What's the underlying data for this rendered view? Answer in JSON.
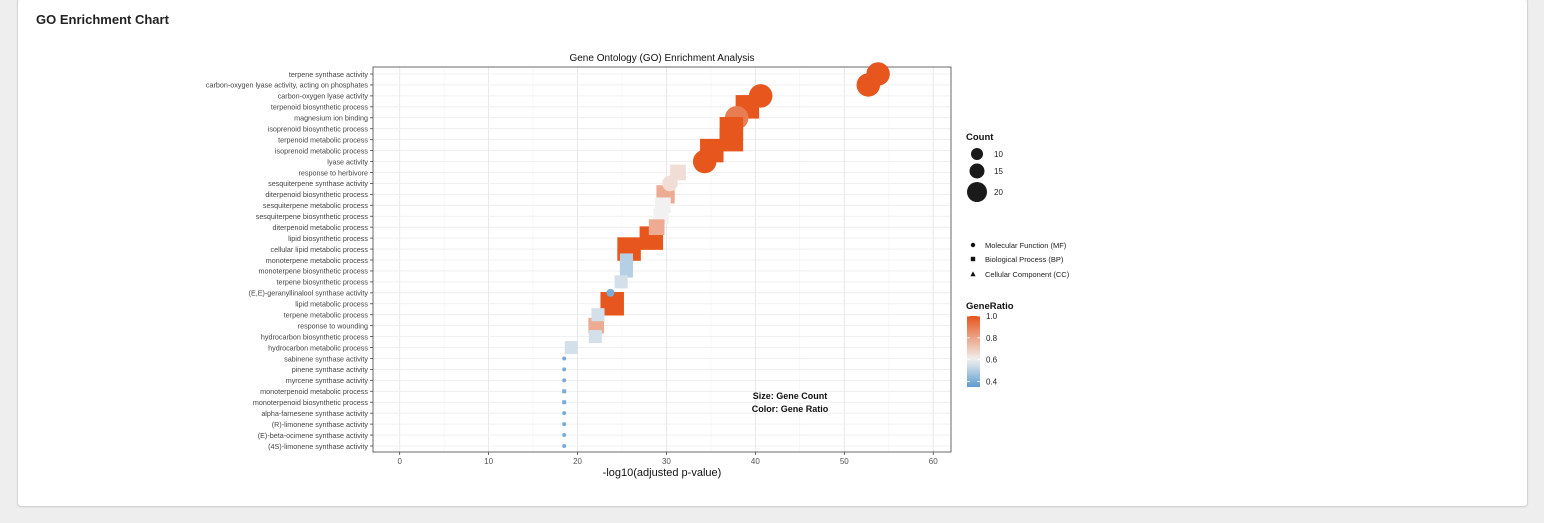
{
  "page": {
    "title": "GO Enrichment Chart"
  },
  "chart_data": {
    "type": "scatter",
    "title": "Gene Ontology (GO) Enrichment Analysis",
    "xlabel": "-log10(adjusted p-value)",
    "ylabel": "",
    "xlim": [
      -3,
      62
    ],
    "xticks": [
      0,
      10,
      20,
      30,
      40,
      50,
      60
    ],
    "grid": true,
    "annotation": [
      "Size: Gene Count",
      "Color: Gene Ratio"
    ],
    "points": [
      {
        "term": "terpene synthase activity",
        "x": 53.8,
        "count": 20,
        "gene_ratio": 1.0,
        "category": "MF"
      },
      {
        "term": "carbon-oxygen lyase activity, acting on phosphates",
        "x": 52.7,
        "count": 20,
        "gene_ratio": 1.0,
        "category": "MF"
      },
      {
        "term": "carbon-oxygen lyase activity",
        "x": 40.6,
        "count": 20,
        "gene_ratio": 1.0,
        "category": "MF"
      },
      {
        "term": "terpenoid biosynthetic process",
        "x": 39.1,
        "count": 20,
        "gene_ratio": 1.0,
        "category": "BP"
      },
      {
        "term": "magnesium ion binding",
        "x": 37.9,
        "count": 20,
        "gene_ratio": 0.9,
        "category": "MF"
      },
      {
        "term": "isoprenoid biosynthetic process",
        "x": 37.3,
        "count": 20,
        "gene_ratio": 1.0,
        "category": "BP"
      },
      {
        "term": "terpenoid metabolic process",
        "x": 37.3,
        "count": 20,
        "gene_ratio": 1.0,
        "category": "BP"
      },
      {
        "term": "isoprenoid metabolic process",
        "x": 35.1,
        "count": 20,
        "gene_ratio": 1.0,
        "category": "BP"
      },
      {
        "term": "lyase activity",
        "x": 34.3,
        "count": 20,
        "gene_ratio": 1.0,
        "category": "MF"
      },
      {
        "term": "response to herbivore",
        "x": 31.3,
        "count": 14,
        "gene_ratio": 0.65,
        "category": "BP"
      },
      {
        "term": "sesquiterpene synthase activity",
        "x": 30.4,
        "count": 14,
        "gene_ratio": 0.65,
        "category": "MF"
      },
      {
        "term": "diterpenoid biosynthetic process",
        "x": 29.9,
        "count": 16,
        "gene_ratio": 0.78,
        "category": "BP"
      },
      {
        "term": "sesquiterpene metabolic process",
        "x": 29.6,
        "count": 14,
        "gene_ratio": 0.6,
        "category": "BP"
      },
      {
        "term": "sesquiterpene biosynthetic process",
        "x": 29.4,
        "count": 14,
        "gene_ratio": 0.6,
        "category": "BP"
      },
      {
        "term": "diterpenoid metabolic process",
        "x": 28.9,
        "count": 14,
        "gene_ratio": 0.78,
        "category": "BP"
      },
      {
        "term": "lipid biosynthetic process",
        "x": 28.3,
        "count": 20,
        "gene_ratio": 1.0,
        "category": "BP"
      },
      {
        "term": "cellular lipid metabolic process",
        "x": 25.8,
        "count": 20,
        "gene_ratio": 1.0,
        "category": "BP"
      },
      {
        "term": "monoterpene metabolic process",
        "x": 25.5,
        "count": 12,
        "gene_ratio": 0.5,
        "category": "BP"
      },
      {
        "term": "monoterpene biosynthetic process",
        "x": 25.5,
        "count": 12,
        "gene_ratio": 0.5,
        "category": "BP"
      },
      {
        "term": "terpene biosynthetic process",
        "x": 24.9,
        "count": 12,
        "gene_ratio": 0.55,
        "category": "BP"
      },
      {
        "term": "(E,E)-geranyllinalool synthase activity",
        "x": 23.7,
        "count": 8,
        "gene_ratio": 0.4,
        "category": "MF"
      },
      {
        "term": "lipid metabolic process",
        "x": 23.9,
        "count": 20,
        "gene_ratio": 1.0,
        "category": "BP"
      },
      {
        "term": "terpene metabolic process",
        "x": 22.3,
        "count": 12,
        "gene_ratio": 0.55,
        "category": "BP"
      },
      {
        "term": "response to wounding",
        "x": 22.1,
        "count": 14,
        "gene_ratio": 0.78,
        "category": "BP"
      },
      {
        "term": "hydrocarbon biosynthetic process",
        "x": 22.0,
        "count": 12,
        "gene_ratio": 0.55,
        "category": "BP"
      },
      {
        "term": "hydrocarbon metabolic process",
        "x": 19.3,
        "count": 12,
        "gene_ratio": 0.55,
        "category": "BP"
      },
      {
        "term": "sabinene synthase activity",
        "x": 18.5,
        "count": 5,
        "gene_ratio": 0.4,
        "category": "MF"
      },
      {
        "term": "pinene synthase activity",
        "x": 18.5,
        "count": 5,
        "gene_ratio": 0.4,
        "category": "MF"
      },
      {
        "term": "myrcene synthase activity",
        "x": 18.5,
        "count": 5,
        "gene_ratio": 0.4,
        "category": "MF"
      },
      {
        "term": "monoterpenoid metabolic process",
        "x": 18.5,
        "count": 5,
        "gene_ratio": 0.4,
        "category": "BP"
      },
      {
        "term": "monoterpenoid biosynthetic process",
        "x": 18.5,
        "count": 5,
        "gene_ratio": 0.4,
        "category": "BP"
      },
      {
        "term": "alpha-farnesene synthase activity",
        "x": 18.5,
        "count": 5,
        "gene_ratio": 0.4,
        "category": "MF"
      },
      {
        "term": "(R)-limonene synthase activity",
        "x": 18.5,
        "count": 5,
        "gene_ratio": 0.4,
        "category": "MF"
      },
      {
        "term": "(E)-beta-ocimene synthase activity",
        "x": 18.5,
        "count": 5,
        "gene_ratio": 0.4,
        "category": "MF"
      },
      {
        "term": "(4S)-limonene synthase activity",
        "x": 18.5,
        "count": 5,
        "gene_ratio": 0.4,
        "category": "MF"
      }
    ],
    "legend_count": {
      "title": "Count",
      "values": [
        10,
        15,
        20
      ]
    },
    "legend_shape": [
      {
        "label": "Molecular Function (MF)",
        "shape": "circle"
      },
      {
        "label": "Biological Process (BP)",
        "shape": "square"
      },
      {
        "label": "Cellular Component (CC)",
        "shape": "triangle"
      }
    ],
    "legend_color": {
      "title": "GeneRatio",
      "range": [
        0.35,
        1.0
      ],
      "ticks": [
        1.0,
        0.8,
        0.6,
        0.4
      ],
      "tick_labels": [
        "1.0",
        "0.8",
        "0.6",
        "0.4"
      ]
    },
    "colors": {
      "high": "#e6561d",
      "mid": "#f1f1f1",
      "low": "#5b9bd0"
    }
  }
}
